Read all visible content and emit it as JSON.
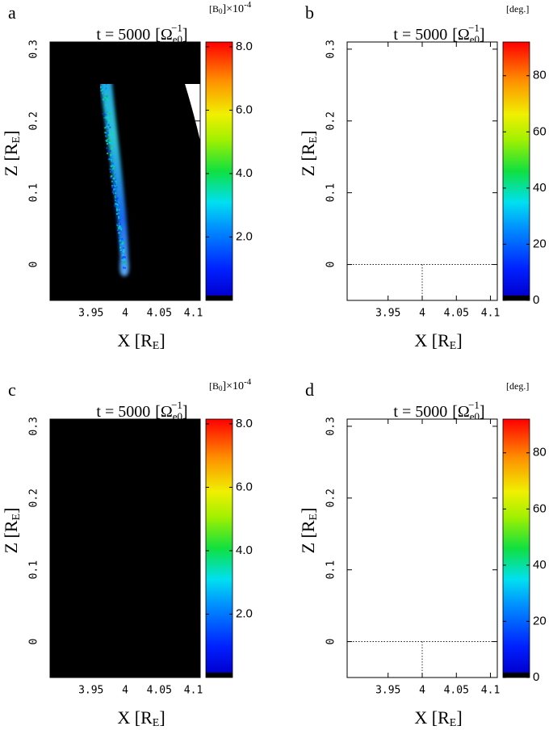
{
  "chart_data": [
    {
      "type": "heatmap",
      "panel_label": "a",
      "title": {
        "text": "t =  5000",
        "open": "[Ω",
        "sub": "e0",
        "sup": "−1",
        "close": "]"
      },
      "xlabel": {
        "text": "X [R",
        "sub": "E",
        "close": "]"
      },
      "ylabel": {
        "text": "Z [R",
        "sub": "E",
        "close": "]"
      },
      "xlim": [
        3.89,
        4.11
      ],
      "xticks": [
        3.95,
        4,
        4.05,
        4.1
      ],
      "ylim": [
        -0.05,
        0.31
      ],
      "yticks": [
        0,
        0.1,
        0.2,
        0.3
      ],
      "background": "#000000",
      "reference_lines": false,
      "colorbar": {
        "label": {
          "main": "[B",
          "sub": "0",
          "mid": "]×10",
          "sup": "-4"
        },
        "lim": [
          0,
          8.15
        ],
        "ticks": [
          {
            "value": 2,
            "label": "2.0"
          },
          {
            "value": 4,
            "label": "4.0"
          },
          {
            "value": 6,
            "label": "6.0"
          },
          {
            "value": 8,
            "label": "8.0"
          }
        ]
      }
    },
    {
      "type": "scatter-map",
      "panel_label": "b",
      "title": {
        "text": "t =  5000",
        "open": "[Ω",
        "sub": "e0",
        "sup": "−1",
        "close": "]"
      },
      "xlabel": {
        "text": "X [R",
        "sub": "E",
        "close": "]"
      },
      "ylabel": {
        "text": "Z [R",
        "sub": "E",
        "close": "]"
      },
      "xlim": [
        3.89,
        4.11
      ],
      "xticks": [
        3.95,
        4,
        4.05,
        4.1
      ],
      "ylim": [
        -0.05,
        0.31
      ],
      "yticks": [
        0,
        0.1,
        0.2,
        0.3
      ],
      "background": "#ffffff",
      "reference_lines": true,
      "colorbar": {
        "label": {
          "main": "[deg.]"
        },
        "lim": [
          0,
          92
        ],
        "ticks": [
          0,
          20,
          40,
          60,
          80
        ]
      }
    },
    {
      "type": "heatmap",
      "panel_label": "c",
      "title": {
        "text": "t =  5000",
        "open": "[Ω",
        "sub": "e0",
        "sup": "−1",
        "close": "]"
      },
      "xlabel": {
        "text": "X [R",
        "sub": "E",
        "close": "]"
      },
      "ylabel": {
        "text": "Z [R",
        "sub": "E",
        "close": "]"
      },
      "xlim": [
        3.89,
        4.11
      ],
      "xticks": [
        3.95,
        4,
        4.05,
        4.1
      ],
      "ylim": [
        -0.05,
        0.31
      ],
      "yticks": [
        0,
        0.1,
        0.2,
        0.3
      ],
      "background": "#000000",
      "reference_lines": false,
      "colorbar": {
        "label": {
          "main": "[B",
          "sub": "0",
          "mid": "]×10",
          "sup": "-4"
        },
        "lim": [
          0,
          8.15
        ],
        "ticks": [
          {
            "value": 2,
            "label": "2.0"
          },
          {
            "value": 4,
            "label": "4.0"
          },
          {
            "value": 6,
            "label": "6.0"
          },
          {
            "value": 8,
            "label": "8.0"
          }
        ]
      }
    },
    {
      "type": "scatter-map",
      "panel_label": "d",
      "title": {
        "text": "t =  5000",
        "open": "[Ω",
        "sub": "e0",
        "sup": "−1",
        "close": "]"
      },
      "xlabel": {
        "text": "X [R",
        "sub": "E",
        "close": "]"
      },
      "ylabel": {
        "text": "Z [R",
        "sub": "E",
        "close": "]"
      },
      "xlim": [
        3.89,
        4.11
      ],
      "xticks": [
        3.95,
        4,
        4.05,
        4.1
      ],
      "ylim": [
        -0.05,
        0.31
      ],
      "yticks": [
        0,
        0.1,
        0.2,
        0.3
      ],
      "background": "#ffffff",
      "reference_lines": true,
      "colorbar": {
        "label": {
          "main": "[deg.]"
        },
        "lim": [
          0,
          92
        ],
        "ticks": [
          0,
          20,
          40,
          60,
          80
        ]
      }
    }
  ]
}
